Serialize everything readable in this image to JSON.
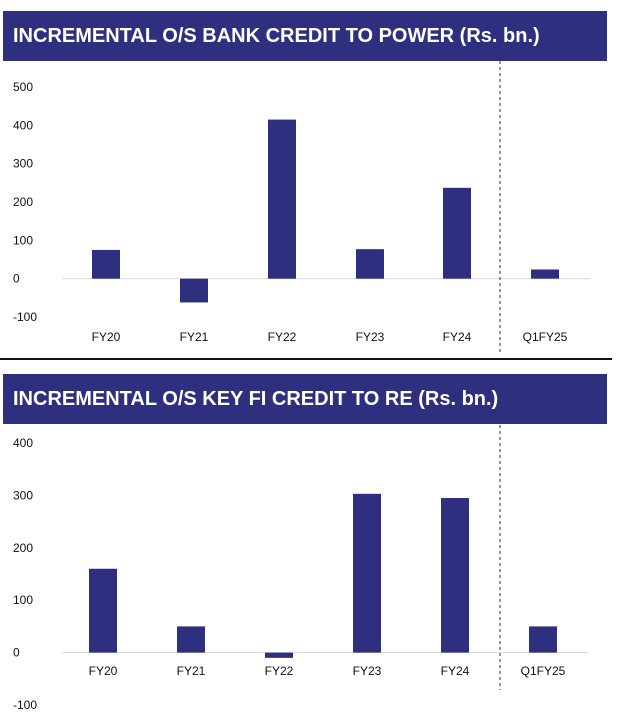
{
  "colors": {
    "header_bg": "#2e2f7f",
    "bar": "#2e2f7f",
    "axis": "#d9d9d9",
    "separator": "#2e2f7f"
  },
  "panels": [
    {
      "title": "INCREMENTAL O/S BANK CREDIT TO POWER (Rs. bn.)"
    },
    {
      "title": "INCREMENTAL O/S KEY FI CREDIT TO RE (Rs. bn.)"
    }
  ],
  "chart_data": [
    {
      "type": "bar",
      "title": "INCREMENTAL O/S BANK CREDIT TO POWER (Rs. bn.)",
      "categories": [
        "FY20",
        "FY21",
        "FY22",
        "FY23",
        "FY24",
        "Q1FY25"
      ],
      "values": [
        75,
        -62,
        415,
        77,
        237,
        24
      ],
      "ylim": [
        -100,
        500
      ],
      "yticks": [
        "500",
        "400",
        "300",
        "200",
        "100",
        "0",
        "-100"
      ],
      "grid": false,
      "legend": "none",
      "separator_before": "Q1FY25"
    },
    {
      "type": "bar",
      "title": "INCREMENTAL O/S KEY FI CREDIT TO RE (Rs. bn.)",
      "categories": [
        "FY20",
        "FY21",
        "FY22",
        "FY23",
        "FY24",
        "Q1FY25"
      ],
      "values": [
        160,
        50,
        -10,
        303,
        295,
        50
      ],
      "ylim": [
        -100,
        400
      ],
      "yticks": [
        "400",
        "300",
        "200",
        "100",
        "0",
        "-100"
      ],
      "grid": false,
      "legend": "none",
      "separator_before": "Q1FY25"
    }
  ]
}
